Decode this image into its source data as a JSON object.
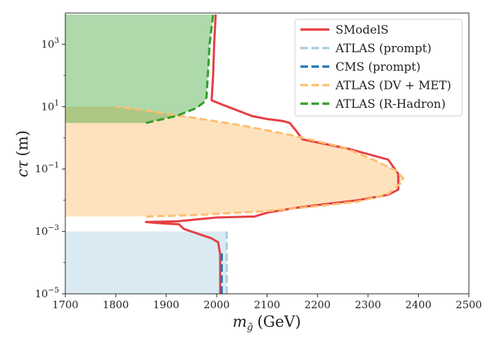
{
  "chart_data": {
    "type": "line",
    "xlabel": "m_g̃ (GeV)",
    "xlabel_main": "m",
    "xlabel_sub": "g̃",
    "xlabel_unit": "(GeV)",
    "ylabel": "cτ (m)",
    "ylabel_main": "cτ",
    "ylabel_unit": "(m)",
    "xlim": [
      1700,
      2500
    ],
    "ylim": [
      1e-05,
      10000.0
    ],
    "yscale": "log",
    "xticks": [
      1700,
      1800,
      1900,
      2000,
      2100,
      2200,
      2300,
      2400,
      2500
    ],
    "yticks": [
      {
        "value": 1e-05,
        "base": "10",
        "exp": "−5"
      },
      {
        "value": 0.001,
        "base": "10",
        "exp": "−3"
      },
      {
        "value": 0.1,
        "base": "10",
        "exp": "−1"
      },
      {
        "value": 10,
        "base": "10",
        "exp": "1"
      },
      {
        "value": 1000,
        "base": "10",
        "exp": "3"
      }
    ],
    "grid": false,
    "legend_position": "top-right",
    "regions": [
      {
        "name": "ATLAS (prompt)",
        "color": "#a6cee3",
        "opacity": 0.42,
        "points": [
          [
            1700,
            1e-05
          ],
          [
            2020,
            1e-05
          ],
          [
            2020,
            0.001
          ],
          [
            1700,
            0.001
          ]
        ]
      },
      {
        "name": "ATLAS (DV + MET)",
        "color": "#fdbf6f",
        "opacity": 0.45,
        "points": [
          [
            1700,
            0.003
          ],
          [
            1830,
            0.003
          ],
          [
            1950,
            0.0033
          ],
          [
            2100,
            0.0045
          ],
          [
            2200,
            0.0065
          ],
          [
            2280,
            0.009
          ],
          [
            2340,
            0.016
          ],
          [
            2365,
            0.035
          ],
          [
            2370,
            0.05
          ],
          [
            2355,
            0.09
          ],
          [
            2310,
            0.2
          ],
          [
            2250,
            0.5
          ],
          [
            2150,
            1.2
          ],
          [
            2050,
            2.5
          ],
          [
            1950,
            4.5
          ],
          [
            1860,
            7.5
          ],
          [
            1800,
            10
          ],
          [
            1700,
            10
          ],
          [
            1700,
            10
          ]
        ]
      },
      {
        "name": "ATLAS (R-Hadron)",
        "color": "#33a02c",
        "opacity": 0.4,
        "points": [
          [
            1700,
            9000
          ],
          [
            1993,
            9000
          ],
          [
            1986,
            1000
          ],
          [
            1980,
            20
          ],
          [
            1975,
            14
          ],
          [
            1960,
            9
          ],
          [
            1920,
            5
          ],
          [
            1860,
            3
          ],
          [
            1700,
            3
          ]
        ]
      }
    ],
    "series": [
      {
        "name": "SModelS",
        "color": "#e64044",
        "dash": "solid",
        "width": 3.2,
        "points": [
          [
            2007,
            1e-05
          ],
          [
            2007,
            0.00018
          ],
          [
            2003,
            0.00045
          ],
          [
            1990,
            0.0006
          ],
          [
            1935,
            0.0012
          ],
          [
            1925,
            0.0017
          ],
          [
            1895,
            0.0018
          ],
          [
            1860,
            0.002
          ],
          [
            1920,
            0.0021
          ],
          [
            2000,
            0.0028
          ],
          [
            2075,
            0.003
          ],
          [
            2100,
            0.004
          ],
          [
            2150,
            0.0055
          ],
          [
            2215,
            0.0075
          ],
          [
            2280,
            0.01
          ],
          [
            2340,
            0.015
          ],
          [
            2360,
            0.022
          ],
          [
            2360,
            0.07
          ],
          [
            2340,
            0.2
          ],
          [
            2300,
            0.3
          ],
          [
            2260,
            0.45
          ],
          [
            2170,
            0.9
          ],
          [
            2160,
            1.5
          ],
          [
            2145,
            3
          ],
          [
            2130,
            3.5
          ],
          [
            2100,
            4
          ],
          [
            2070,
            5
          ],
          [
            2015,
            11
          ],
          [
            1990,
            16
          ],
          [
            1993,
            100
          ],
          [
            1995,
            1000
          ],
          [
            1998,
            9000
          ]
        ]
      },
      {
        "name": "ATLAS (prompt)",
        "color": "#a6cee3",
        "dash": "dashed",
        "width": 3.2,
        "points": [
          [
            2020,
            1e-05
          ],
          [
            2020,
            0.001
          ]
        ]
      },
      {
        "name": "CMS (prompt)",
        "color": "#1f78b4",
        "dash": "dashed",
        "width": 3.2,
        "points": [
          [
            2010,
            1e-05
          ],
          [
            2010,
            0.0002
          ]
        ]
      },
      {
        "name": "ATLAS (DV + MET)",
        "color": "#fdbf6f",
        "dash": "dashed",
        "width": 3.2,
        "points": [
          [
            1860,
            0.003
          ],
          [
            1950,
            0.0033
          ],
          [
            2100,
            0.0045
          ],
          [
            2200,
            0.0065
          ],
          [
            2280,
            0.009
          ],
          [
            2340,
            0.016
          ],
          [
            2365,
            0.035
          ],
          [
            2370,
            0.05
          ],
          [
            2355,
            0.09
          ],
          [
            2310,
            0.2
          ],
          [
            2250,
            0.5
          ],
          [
            2150,
            1.2
          ],
          [
            2050,
            2.5
          ],
          [
            1950,
            4.5
          ],
          [
            1860,
            7.5
          ],
          [
            1800,
            10
          ]
        ]
      },
      {
        "name": "ATLAS (R-Hadron)",
        "color": "#33a02c",
        "dash": "dashed",
        "width": 3.2,
        "points": [
          [
            1860,
            3
          ],
          [
            1920,
            5
          ],
          [
            1960,
            9
          ],
          [
            1975,
            14
          ],
          [
            1980,
            20
          ],
          [
            1986,
            1000
          ],
          [
            1993,
            9000
          ]
        ]
      }
    ],
    "legend": [
      {
        "label": "SModelS",
        "color": "#e64044",
        "dash": "solid"
      },
      {
        "label": "ATLAS (prompt)",
        "color": "#a6cee3",
        "dash": "dashed"
      },
      {
        "label": "CMS (prompt)",
        "color": "#1f78b4",
        "dash": "dashed"
      },
      {
        "label": "ATLAS (DV + MET)",
        "color": "#fdbf6f",
        "dash": "dashed"
      },
      {
        "label": "ATLAS (R-Hadron)",
        "color": "#33a02c",
        "dash": "dashed"
      }
    ]
  }
}
